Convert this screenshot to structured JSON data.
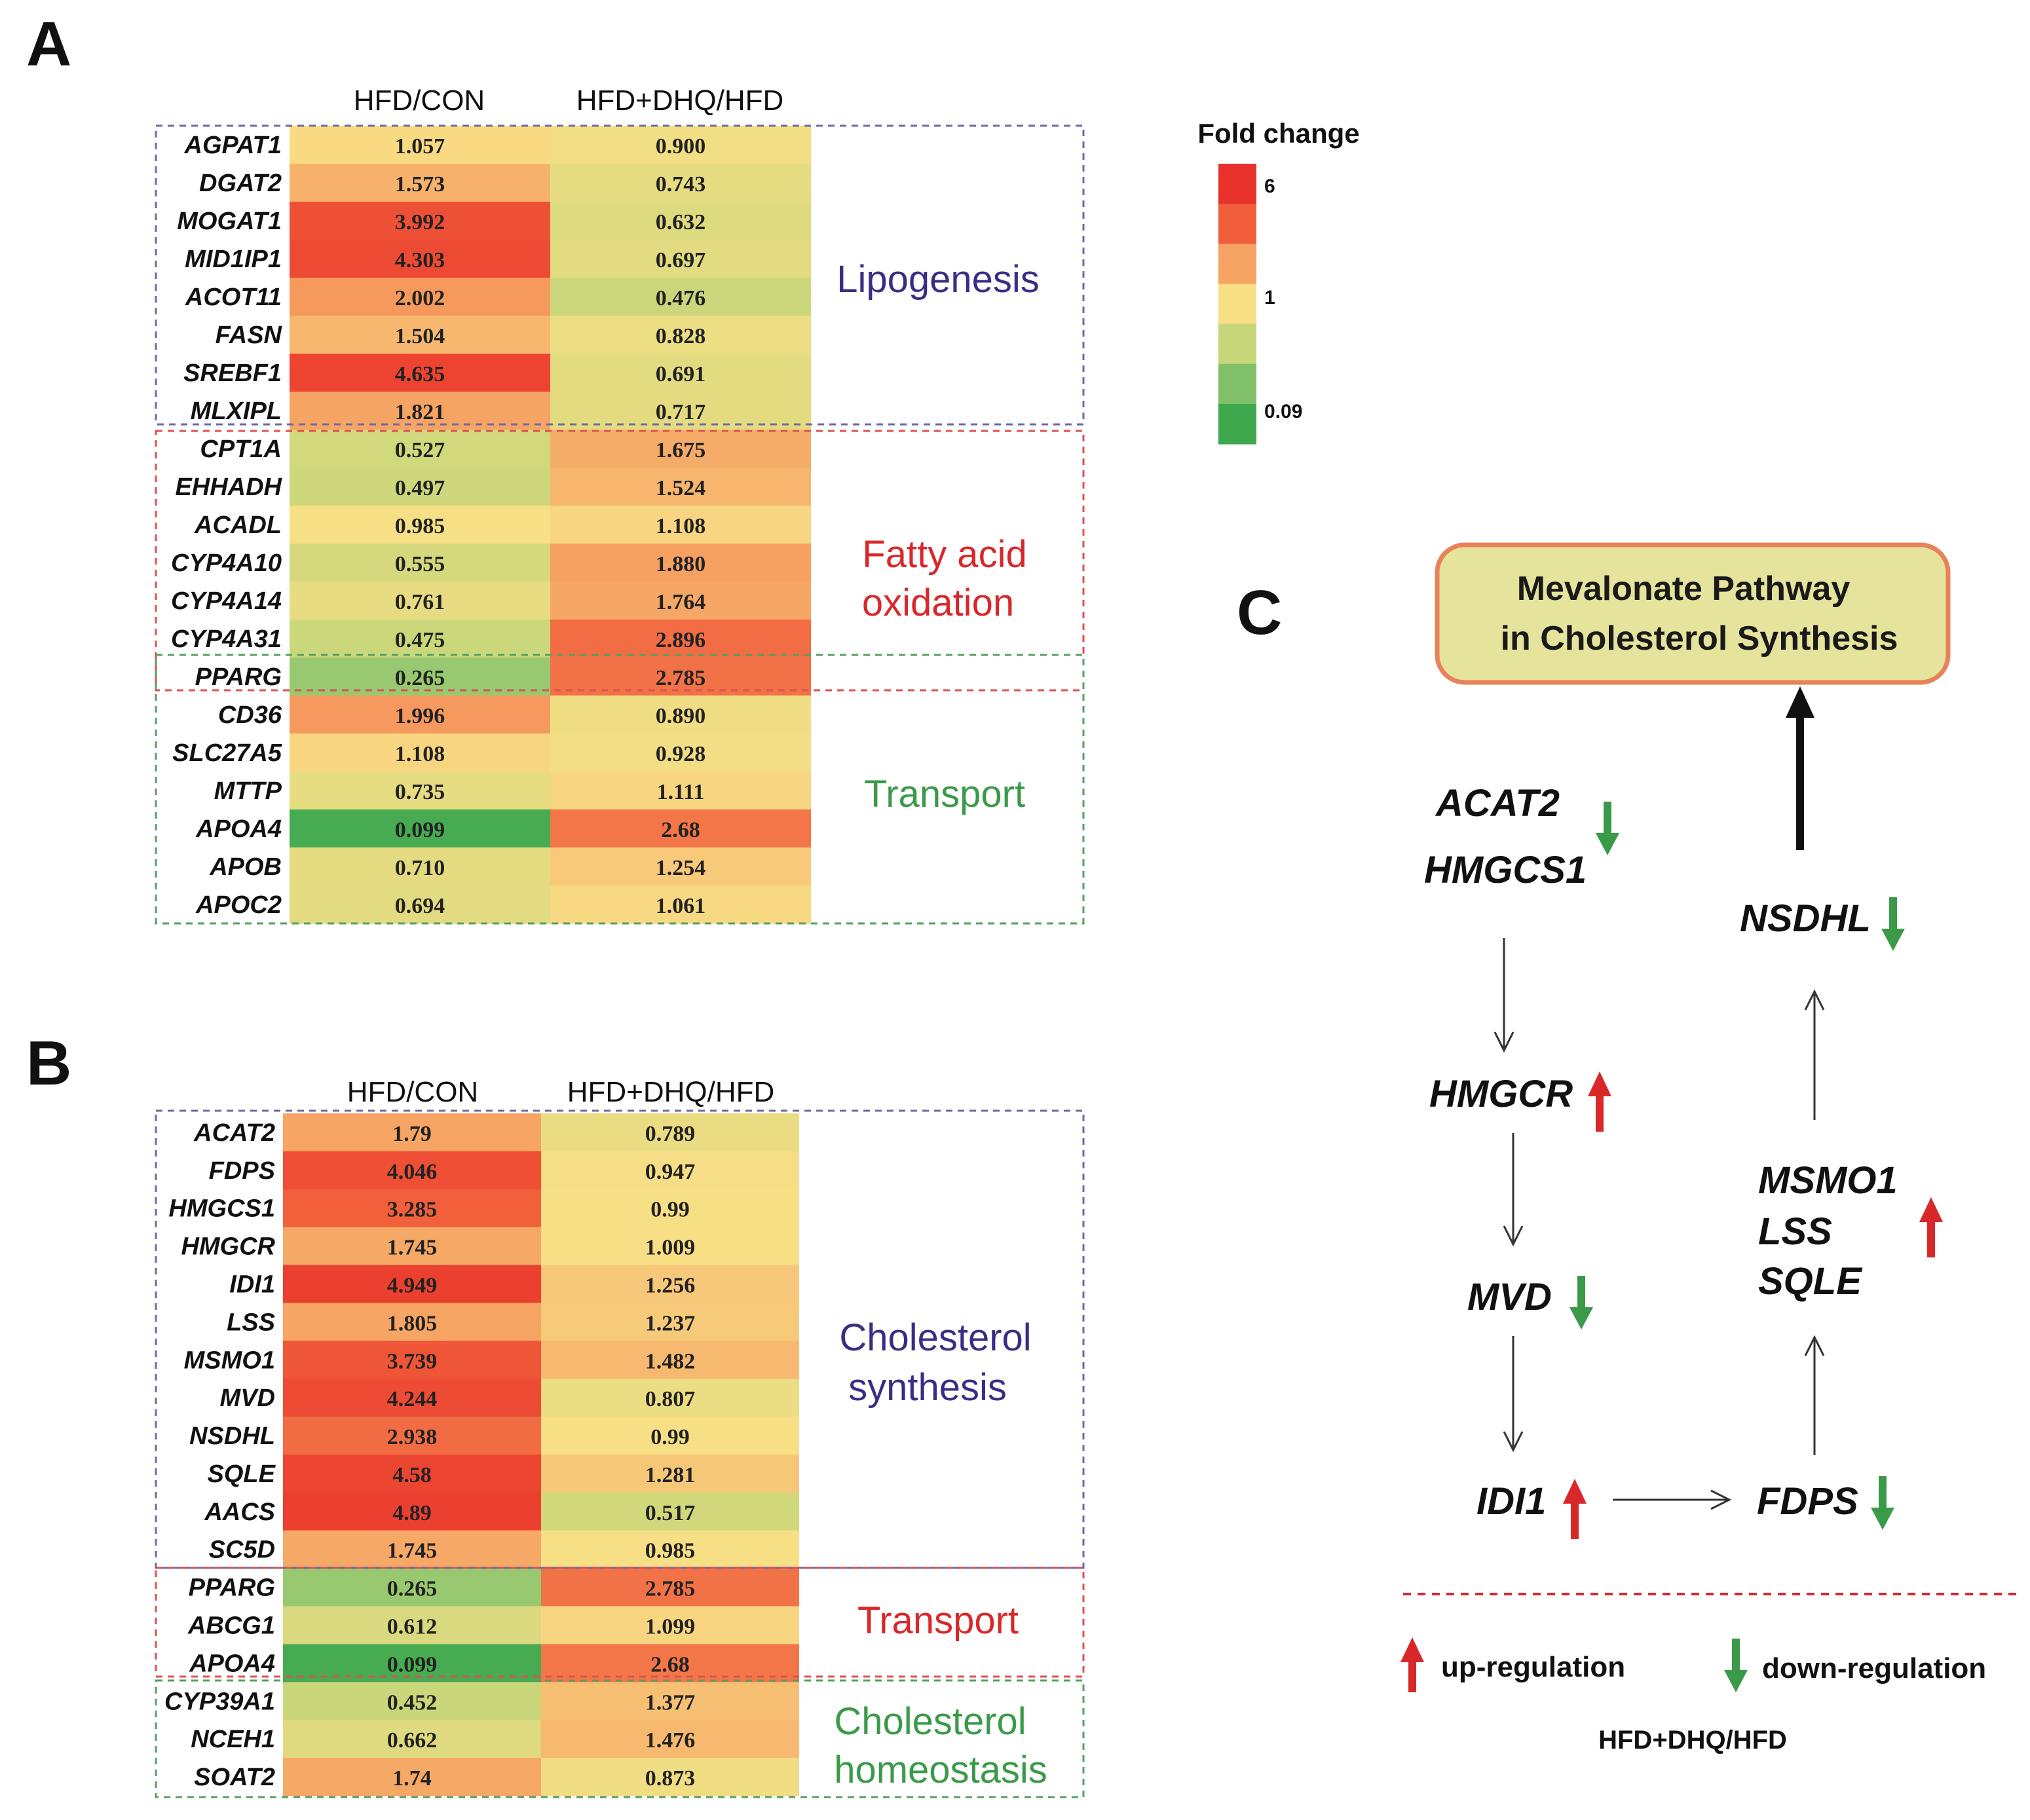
{
  "legend": {
    "title": "Fold change",
    "tick_max": "6",
    "tick_mid": "1",
    "tick_min": "0.09",
    "colors": [
      "#e8312a",
      "#f15e3b",
      "#f6a464",
      "#f8df86",
      "#c8d67a",
      "#7fc069",
      "#3ea84e"
    ]
  },
  "panelA": {
    "letter": "A",
    "col1": "HFD/CON",
    "col2": "HFD+DHQ/HFD",
    "genes": [
      "AGPAT1",
      "DGAT2",
      "MOGAT1",
      "MID1IP1",
      "ACOT11",
      "FASN",
      "SREBF1",
      "MLXIPL",
      "CPT1A",
      "EHHADH",
      "ACADL",
      "CYP4A10",
      "CYP4A14",
      "CYP4A31",
      "PPARG",
      "CD36",
      "SLC27A5",
      "MTTP",
      "APOA4",
      "APOB",
      "APOC2"
    ],
    "v1": [
      "1.057",
      "1.573",
      "3.992",
      "4.303",
      "2.002",
      "1.504",
      "4.635",
      "1.821",
      "0.527",
      "0.497",
      "0.985",
      "0.555",
      "0.761",
      "0.475",
      "0.265",
      "1.996",
      "1.108",
      "0.735",
      "0.099",
      "0.710",
      "0.694"
    ],
    "v2": [
      "0.900",
      "0.743",
      "0.632",
      "0.697",
      "0.476",
      "0.828",
      "0.691",
      "0.717",
      "1.675",
      "1.524",
      "1.108",
      "1.880",
      "1.764",
      "2.896",
      "2.785",
      "0.890",
      "0.928",
      "1.111",
      "2.68",
      "1.254",
      "1.061"
    ],
    "groups": [
      {
        "label1": "Lipogenesis",
        "label2": "",
        "color": "#3a2d86"
      },
      {
        "label1": "Fatty acid",
        "label2": "oxidation",
        "color": "#d8282a"
      },
      {
        "label1": "Transport",
        "label2": "",
        "color": "#3a9a49"
      }
    ]
  },
  "panelB": {
    "letter": "B",
    "col1": "HFD/CON",
    "col2": "HFD+DHQ/HFD",
    "genes": [
      "ACAT2",
      "FDPS",
      "HMGCS1",
      "HMGCR",
      "IDI1",
      "LSS",
      "MSMO1",
      "MVD",
      "NSDHL",
      "SQLE",
      "AACS",
      "SC5D",
      "PPARG",
      "ABCG1",
      "APOA4",
      "CYP39A1",
      "NCEH1",
      "SOAT2"
    ],
    "v1": [
      "1.79",
      "4.046",
      "3.285",
      "1.745",
      "4.949",
      "1.805",
      "3.739",
      "4.244",
      "2.938",
      "4.58",
      "4.89",
      "1.745",
      "0.265",
      "0.612",
      "0.099",
      "0.452",
      "0.662",
      "1.74"
    ],
    "v2": [
      "0.789",
      "0.947",
      "0.99",
      "1.009",
      "1.256",
      "1.237",
      "1.482",
      "0.807",
      "0.99",
      "1.281",
      "0.517",
      "0.985",
      "2.785",
      "1.099",
      "2.68",
      "1.377",
      "1.476",
      "0.873"
    ],
    "groups": [
      {
        "label1": "Cholesterol",
        "label2": "synthesis",
        "color": "#3a2d86"
      },
      {
        "label1": "Transport",
        "label2": "",
        "color": "#d8282a"
      },
      {
        "label1": "Cholesterol",
        "label2": "homeostasis",
        "color": "#3a9a49"
      }
    ]
  },
  "panelC": {
    "letter": "C",
    "box_line1": "Mevalonate Pathway",
    "box_line2": "in Cholesterol Synthesis",
    "genes": {
      "acat2": "ACAT2",
      "hmgcs1": "HMGCS1",
      "hmgcr": "HMGCR",
      "mvd": "MVD",
      "idi1": "IDI1",
      "fdps": "FDPS",
      "msmo1": "MSMO1",
      "lss": "LSS",
      "sqle": "SQLE",
      "nsdhl": "NSDHL"
    },
    "legend_up": "up-regulation",
    "legend_down": "down-regulation",
    "legend_caption": "HFD+DHQ/HFD",
    "up_color": "#d8282a",
    "down_color": "#3a9a49"
  },
  "chart_data": [
    {
      "type": "heatmap",
      "title": "A",
      "columns": [
        "HFD/CON",
        "HFD+DHQ/HFD"
      ],
      "rows": [
        "AGPAT1",
        "DGAT2",
        "MOGAT1",
        "MID1IP1",
        "ACOT11",
        "FASN",
        "SREBF1",
        "MLXIPL",
        "CPT1A",
        "EHHADH",
        "ACADL",
        "CYP4A10",
        "CYP4A14",
        "CYP4A31",
        "PPARG",
        "CD36",
        "SLC27A5",
        "MTTP",
        "APOA4",
        "APOB",
        "APOC2"
      ],
      "series": [
        {
          "name": "HFD/CON",
          "values": [
            1.057,
            1.573,
            3.992,
            4.303,
            2.002,
            1.504,
            4.635,
            1.821,
            0.527,
            0.497,
            0.985,
            0.555,
            0.761,
            0.475,
            0.265,
            1.996,
            1.108,
            0.735,
            0.099,
            0.71,
            0.694
          ]
        },
        {
          "name": "HFD+DHQ/HFD",
          "values": [
            0.9,
            0.743,
            0.632,
            0.697,
            0.476,
            0.828,
            0.691,
            0.717,
            1.675,
            1.524,
            1.108,
            1.88,
            1.764,
            2.896,
            2.785,
            0.89,
            0.928,
            1.111,
            2.68,
            1.254,
            1.061
          ]
        }
      ],
      "groups": [
        "Lipogenesis",
        "Fatty acid oxidation",
        "Transport"
      ],
      "color_scale": {
        "label": "Fold change",
        "min": 0.09,
        "mid": 1,
        "max": 6
      }
    },
    {
      "type": "heatmap",
      "title": "B",
      "columns": [
        "HFD/CON",
        "HFD+DHQ/HFD"
      ],
      "rows": [
        "ACAT2",
        "FDPS",
        "HMGCS1",
        "HMGCR",
        "IDI1",
        "LSS",
        "MSMO1",
        "MVD",
        "NSDHL",
        "SQLE",
        "AACS",
        "SC5D",
        "PPARG",
        "ABCG1",
        "APOA4",
        "CYP39A1",
        "NCEH1",
        "SOAT2"
      ],
      "series": [
        {
          "name": "HFD/CON",
          "values": [
            1.79,
            4.046,
            3.285,
            1.745,
            4.949,
            1.805,
            3.739,
            4.244,
            2.938,
            4.58,
            4.89,
            1.745,
            0.265,
            0.612,
            0.099,
            0.452,
            0.662,
            1.74
          ]
        },
        {
          "name": "HFD+DHQ/HFD",
          "values": [
            0.789,
            0.947,
            0.99,
            1.009,
            1.256,
            1.237,
            1.482,
            0.807,
            0.99,
            1.281,
            0.517,
            0.985,
            2.785,
            1.099,
            2.68,
            1.377,
            1.476,
            0.873
          ]
        }
      ],
      "groups": [
        "Cholesterol synthesis",
        "Transport",
        "Cholesterol homeostasis"
      ],
      "color_scale": {
        "label": "Fold change",
        "min": 0.09,
        "mid": 1,
        "max": 6
      }
    }
  ]
}
